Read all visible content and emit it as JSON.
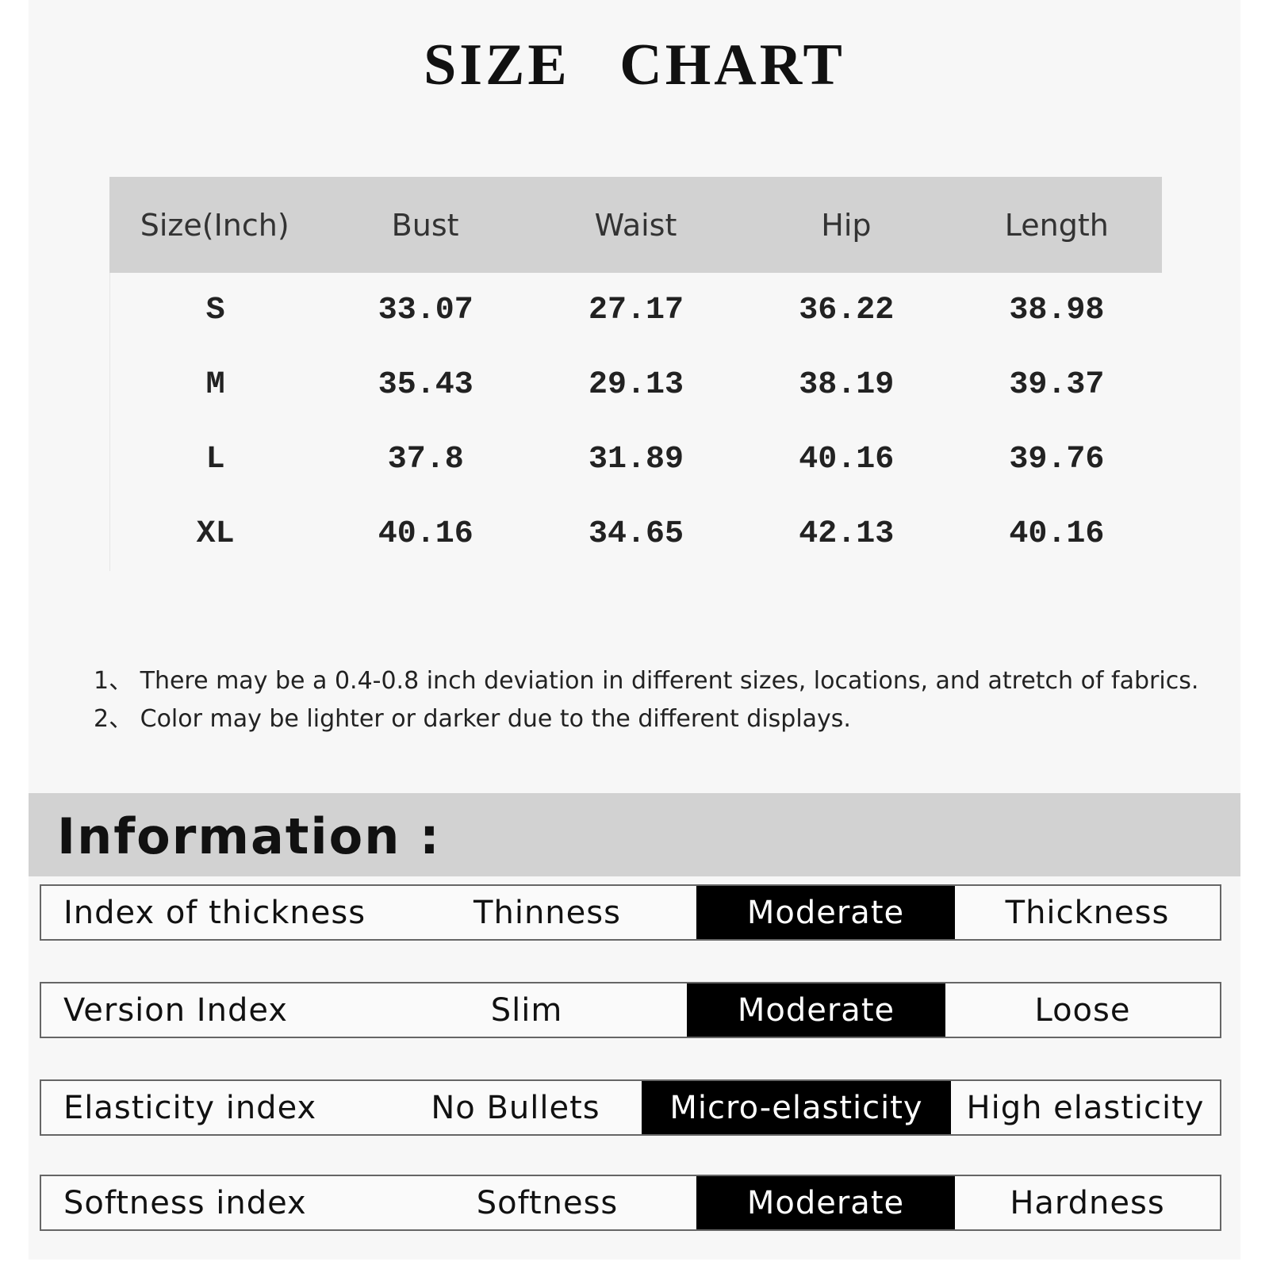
{
  "title": "SIZE CHART",
  "table": {
    "headers": [
      "Size(Inch)",
      "Bust",
      "Waist",
      "Hip",
      "Length"
    ],
    "rows": [
      [
        "S",
        "33.07",
        "27.17",
        "36.22",
        "38.98"
      ],
      [
        "M",
        "35.43",
        "29.13",
        "38.19",
        "39.37"
      ],
      [
        "L",
        "37.8",
        "31.89",
        "40.16",
        "39.76"
      ],
      [
        "XL",
        "40.16",
        "34.65",
        "42.13",
        "40.16"
      ]
    ]
  },
  "notes": [
    "1、 There may be a 0.4-0.8 inch deviation in different sizes, locations, and atretch of fabrics.",
    "2、 Color may be lighter or darker due to the different displays."
  ],
  "information": {
    "heading": "Information :",
    "rows": [
      {
        "label": "Index of thickness",
        "options": [
          "Thinness",
          "Moderate",
          "Thickness"
        ],
        "selected": "Moderate"
      },
      {
        "label": "Version Index",
        "options": [
          "Slim",
          "Moderate",
          "Loose"
        ],
        "selected": "Moderate"
      },
      {
        "label": "Elasticity index",
        "options": [
          "No Bullets",
          "Micro-elasticity",
          "High elasticity"
        ],
        "selected": "Micro-elasticity"
      },
      {
        "label": "Softness index",
        "options": [
          "Softness",
          "Moderate",
          "Hardness"
        ],
        "selected": "Moderate"
      }
    ]
  },
  "colors": {
    "header_bg": "#d2d2d2",
    "selected_bg": "#000000",
    "page_bg": "#f7f7f7"
  }
}
